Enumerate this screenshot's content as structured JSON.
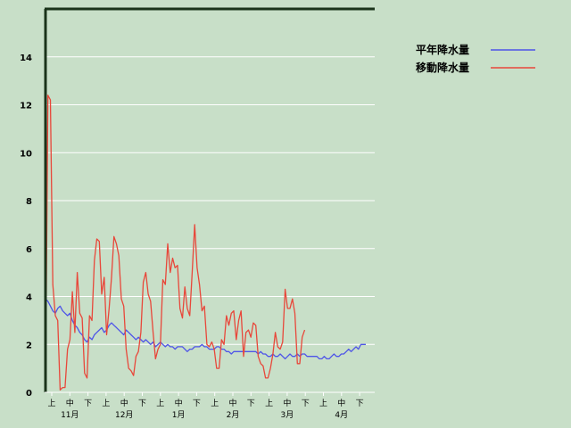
{
  "chart_data": {
    "type": "line",
    "title": "",
    "xlabel": "",
    "ylabel": "",
    "ylim": [
      0,
      16
    ],
    "yticks": [
      0,
      2,
      4,
      6,
      8,
      10,
      12,
      14
    ],
    "grid": true,
    "legend_position": "top-right",
    "x_period_labels": [
      "上",
      "中",
      "下",
      "上",
      "中",
      "下",
      "上",
      "中",
      "下",
      "上",
      "中",
      "下",
      "上",
      "中",
      "下",
      "上",
      "中",
      "下"
    ],
    "x_month_labels": [
      "11月",
      "12月",
      "1月",
      "2月",
      "3月",
      "4月"
    ],
    "series": [
      {
        "name": "平年降水量",
        "color": "#4e54e8",
        "values": [
          3.9,
          3.8,
          3.6,
          3.4,
          3.3,
          3.5,
          3.6,
          3.4,
          3.3,
          3.2,
          3.3,
          3.0,
          2.8,
          2.7,
          2.5,
          2.4,
          2.2,
          2.1,
          2.3,
          2.2,
          2.4,
          2.5,
          2.6,
          2.7,
          2.5,
          2.6,
          2.8,
          2.9,
          2.8,
          2.7,
          2.6,
          2.5,
          2.4,
          2.6,
          2.5,
          2.4,
          2.3,
          2.2,
          2.3,
          2.2,
          2.1,
          2.2,
          2.1,
          2.0,
          2.1,
          1.9,
          2.0,
          2.1,
          2.0,
          1.9,
          2.0,
          1.9,
          1.9,
          1.8,
          1.9,
          1.9,
          1.9,
          1.8,
          1.7,
          1.8,
          1.8,
          1.9,
          1.9,
          1.9,
          2.0,
          1.9,
          1.9,
          1.8,
          1.8,
          1.8,
          1.9,
          1.9,
          1.8,
          1.8,
          1.7,
          1.7,
          1.6,
          1.7,
          1.7,
          1.7,
          1.7,
          1.7,
          1.7,
          1.7,
          1.7,
          1.7,
          1.7,
          1.6,
          1.7,
          1.6,
          1.6,
          1.5,
          1.5,
          1.6,
          1.5,
          1.5,
          1.6,
          1.5,
          1.4,
          1.5,
          1.6,
          1.5,
          1.5,
          1.6,
          1.5,
          1.6,
          1.6,
          1.5,
          1.5,
          1.5,
          1.5,
          1.5,
          1.4,
          1.4,
          1.5,
          1.4,
          1.4,
          1.5,
          1.6,
          1.5,
          1.5,
          1.6,
          1.6,
          1.7,
          1.8,
          1.7,
          1.8,
          1.9,
          1.8,
          2.0,
          2.0,
          2.0
        ]
      },
      {
        "name": "移動降水量",
        "color": "#e8473a",
        "values": [
          0,
          12.4,
          12.2,
          4.5,
          3.2,
          3.0,
          0.1,
          0.2,
          0.2,
          1.8,
          2.2,
          4.2,
          2.5,
          5.0,
          3.3,
          3.1,
          0.8,
          0.6,
          3.2,
          3.0,
          5.5,
          6.4,
          6.3,
          4.1,
          4.8,
          2.4,
          3.5,
          4.8,
          6.5,
          6.2,
          5.7,
          3.9,
          3.6,
          1.8,
          1.0,
          0.9,
          0.7,
          1.5,
          1.7,
          2.5,
          4.6,
          5.0,
          4.1,
          3.8,
          2.5,
          1.4,
          1.8,
          2.0,
          4.7,
          4.5,
          6.2,
          5.0,
          5.6,
          5.2,
          5.3,
          3.5,
          3.1,
          4.4,
          3.5,
          3.2,
          5.0,
          7.0,
          5.2,
          4.5,
          3.4,
          3.6,
          2.0,
          1.9,
          2.1,
          1.8,
          1.0,
          1.0,
          2.2,
          2.0,
          3.2,
          2.8,
          3.3,
          3.4,
          2.2,
          3.0,
          3.4,
          1.5,
          2.5,
          2.6,
          2.3,
          2.9,
          2.8,
          1.5,
          1.2,
          1.1,
          0.6,
          0.6,
          1.0,
          1.6,
          2.5,
          1.9,
          1.8,
          2.1,
          4.3,
          3.5,
          3.5,
          3.9,
          3.3,
          1.2,
          1.2,
          2.3,
          2.6
        ]
      }
    ]
  }
}
